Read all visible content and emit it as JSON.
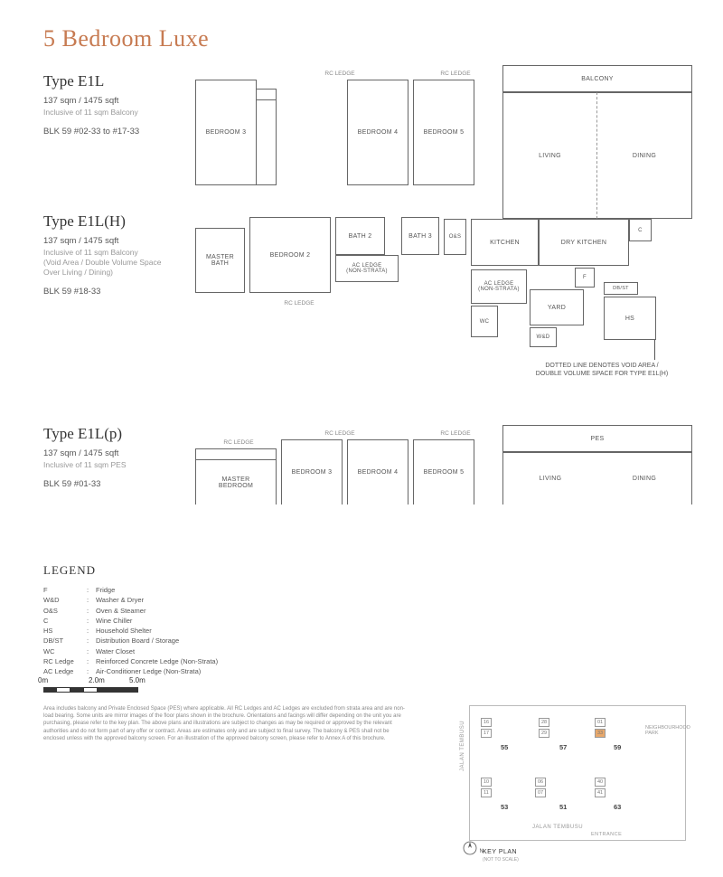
{
  "title": "5 Bedroom Luxe",
  "title_color": "#c77b52",
  "types": [
    {
      "name": "Type E1L",
      "size": "137 sqm / 1475 sqft",
      "note": "Inclusive of 11 sqm Balcony",
      "blk": "BLK 59   #02-33 to #17-33"
    },
    {
      "name": "Type E1L(H)",
      "size": "137 sqm / 1475 sqft",
      "note": "Inclusive of 11 sqm Balcony\n(Void Area / Double Volume Space\nOver Living / Dining)",
      "blk": "BLK 59   #18-33"
    },
    {
      "name": "Type E1L(p)",
      "size": "137 sqm / 1475 sqft",
      "note": "Inclusive of 11 sqm PES",
      "blk": "BLK 59   #01-33"
    }
  ],
  "rooms_main": {
    "master_bedroom": "MASTER\nBEDROOM",
    "bedroom2": "BEDROOM 2",
    "bedroom3": "BEDROOM 3",
    "bedroom4": "BEDROOM 4",
    "bedroom5": "BEDROOM 5",
    "living": "LIVING",
    "dining": "DINING",
    "balcony": "BALCONY",
    "kitchen": "KITCHEN",
    "dry_kitchen": "DRY KITCHEN",
    "master_bath": "MASTER\nBATH",
    "bath2": "BATH 2",
    "bath3": "BATH 3",
    "yard": "YARD",
    "hs": "HS",
    "wc": "WC",
    "wd": "W&D",
    "os": "O&S",
    "c": "C",
    "f": "F",
    "dbst": "DB/ST",
    "ac_ledge": "AC LEDGE\n(NON-STRATA)",
    "rc_ledge": "RC LEDGE",
    "pes": "PES"
  },
  "void_note": "DOTTED LINE DENOTES VOID AREA /\nDOUBLE VOLUME SPACE FOR TYPE E1L(H)",
  "legend_title": "LEGEND",
  "legend": [
    {
      "key": "F",
      "val": "Fridge"
    },
    {
      "key": "W&D",
      "val": "Washer & Dryer"
    },
    {
      "key": "O&S",
      "val": "Oven & Steamer"
    },
    {
      "key": "C",
      "val": "Wine Chiller"
    },
    {
      "key": "HS",
      "val": "Household Shelter"
    },
    {
      "key": "DB/ST",
      "val": "Distribution Board / Storage"
    },
    {
      "key": "WC",
      "val": "Water Closet"
    },
    {
      "key": "RC Ledge",
      "val": "Reinforced Concrete Ledge (Non-Strata)"
    },
    {
      "key": "AC Ledge",
      "val": "Air-Conditioner Ledge (Non-Strata)"
    }
  ],
  "scale": {
    "labels": [
      "0m",
      "2.0m",
      "5.0m"
    ]
  },
  "disclaimer": "Area includes balcony and Private Enclosed Space (PES) where applicable. All RC Ledges and AC Ledges are excluded from strata area and are non-load bearing. Some units are mirror images of the floor plans shown in the brochure. Orientations and facings will differ depending on the unit you are purchasing, please refer to the key plan. The above plans and illustrations are subject to changes as may be required or approved by the relevant authorities and do not form part of any offer or contract. Areas are estimates only and are subject to final survey. The balcony & PES shall not be enclosed unless with the approved balcony screen. For an illustration of the approved balcony screen, please refer to Annex A of this brochure.",
  "keyplan": {
    "blocks": [
      "55",
      "57",
      "59",
      "53",
      "51",
      "63"
    ],
    "park_label": "NEIGHBOURHOOD\nPARK",
    "road1": "JALAN TEMBUSU",
    "road2": "JALAN TEMBUSU",
    "entrance": "ENTRANCE",
    "keyplan_label": "KEY PLAN",
    "keyplan_sub": "(NOT TO SCALE)",
    "highlight_unit": "33"
  }
}
